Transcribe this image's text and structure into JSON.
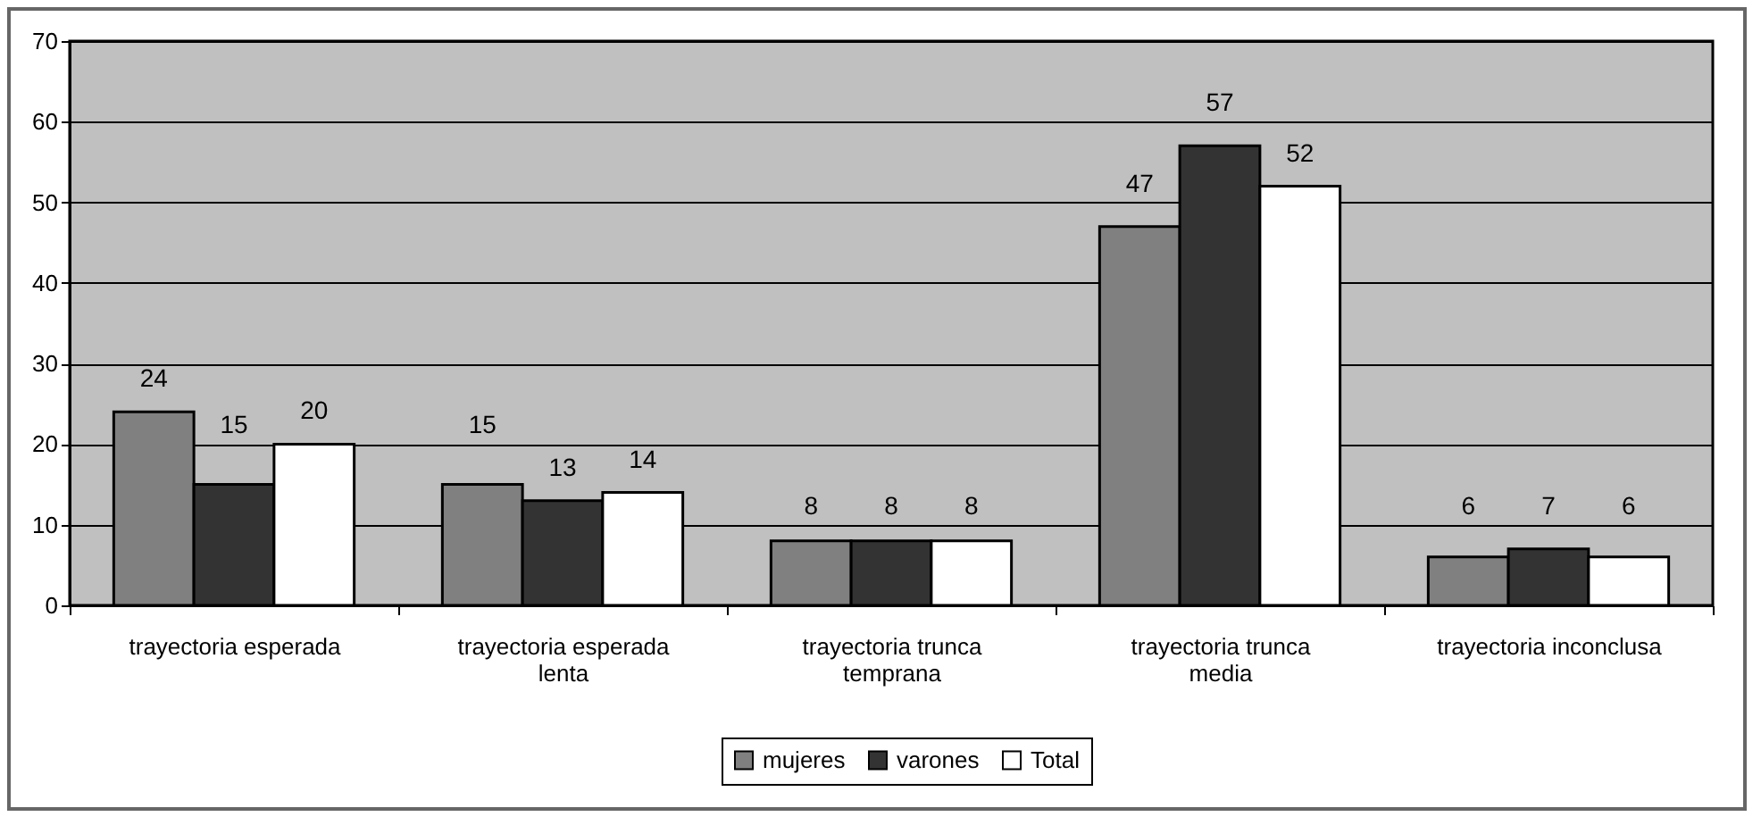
{
  "chart_data": {
    "type": "bar",
    "categories": [
      "trayectoria esperada",
      "trayectoria esperada lenta",
      "trayectoria trunca temprana",
      "trayectoria trunca media",
      "trayectoria inconclusa"
    ],
    "series": [
      {
        "name": "mujeres",
        "color": "#808080",
        "values": [
          24,
          15,
          8,
          47,
          6
        ]
      },
      {
        "name": "varones",
        "color": "#333333",
        "values": [
          15,
          13,
          8,
          57,
          7
        ]
      },
      {
        "name": "Total",
        "color": "#ffffff",
        "values": [
          20,
          14,
          8,
          52,
          6
        ]
      }
    ],
    "ylim": [
      0,
      70
    ],
    "yticks": [
      0,
      10,
      20,
      30,
      40,
      50,
      60,
      70
    ],
    "grid": "y",
    "legend": "bottom",
    "data_labels": true
  }
}
